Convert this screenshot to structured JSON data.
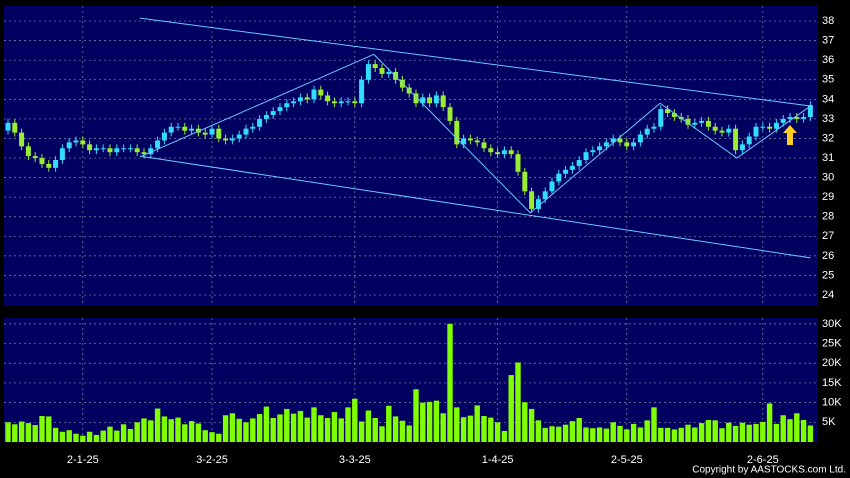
{
  "chart_data": [
    {
      "type": "candlestick",
      "categories": [
        null,
        null,
        null,
        null,
        null,
        null,
        null,
        null,
        null,
        null,
        null,
        "2-1-25",
        null,
        null,
        null,
        null,
        null,
        null,
        null,
        null,
        null,
        null,
        null,
        null,
        null,
        null,
        null,
        null,
        null,
        null,
        "3-2-25",
        null,
        null,
        null,
        null,
        null,
        null,
        null,
        null,
        null,
        null,
        null,
        null,
        null,
        null,
        null,
        null,
        null,
        null,
        null,
        null,
        "3-3-25",
        null,
        null,
        null,
        null,
        null,
        null,
        null,
        null,
        null,
        null,
        null,
        null,
        null,
        null,
        null,
        null,
        null,
        null,
        null,
        null,
        "1-4-25",
        null,
        null,
        null,
        null,
        null,
        null,
        null,
        null,
        null,
        null,
        null,
        null,
        null,
        null,
        null,
        null,
        null,
        null,
        "2-5-25",
        null,
        null,
        null,
        null,
        null,
        null,
        null,
        null,
        null,
        null,
        null,
        null,
        null,
        null,
        null,
        null,
        null,
        null,
        null,
        "2-6-25",
        null,
        null,
        null,
        null,
        null,
        null,
        null
      ],
      "open": [
        32.4,
        32.8,
        32.3,
        31.6,
        31.1,
        31.0,
        30.7,
        30.5,
        30.9,
        31.5,
        31.8,
        31.9,
        31.7,
        31.4,
        31.5,
        31.5,
        31.3,
        31.5,
        31.5,
        31.5,
        31.3,
        31.2,
        31.5,
        31.9,
        32.3,
        32.6,
        32.6,
        32.4,
        32.5,
        32.3,
        32.2,
        32.5,
        32.0,
        31.9,
        32.0,
        32.2,
        32.5,
        32.6,
        33.0,
        33.2,
        33.4,
        33.6,
        33.8,
        33.9,
        34.1,
        34.0,
        34.5,
        34.2,
        33.9,
        33.8,
        33.9,
        33.9,
        33.8,
        35.0,
        35.8,
        35.6,
        35.3,
        35.4,
        35.0,
        34.6,
        34.3,
        33.8,
        34.1,
        33.8,
        34.2,
        33.6,
        32.9,
        31.7,
        32.0,
        31.9,
        31.8,
        31.5,
        31.3,
        31.2,
        31.4,
        31.2,
        30.3,
        29.3,
        28.4,
        28.9,
        29.3,
        29.8,
        30.2,
        30.4,
        30.6,
        30.9,
        31.3,
        31.4,
        31.6,
        31.8,
        32.0,
        31.8,
        31.6,
        31.8,
        32.2,
        32.5,
        32.6,
        33.5,
        33.3,
        33.1,
        33.0,
        32.7,
        32.8,
        32.9,
        32.6,
        32.4,
        32.3,
        32.5,
        31.4,
        31.7,
        32.1,
        32.6,
        32.6,
        32.5,
        32.8,
        33.0,
        33.1,
        33.0,
        33.1
      ],
      "high": [
        33.0,
        33.0,
        32.5,
        31.8,
        31.3,
        31.2,
        30.9,
        31.1,
        31.7,
        32.0,
        32.1,
        32.1,
        31.9,
        31.7,
        31.7,
        31.7,
        31.7,
        31.7,
        31.7,
        31.7,
        31.5,
        31.7,
        32.1,
        32.5,
        32.8,
        32.8,
        32.8,
        32.7,
        32.7,
        32.5,
        32.7,
        32.7,
        32.2,
        32.2,
        32.4,
        32.7,
        32.8,
        33.2,
        33.4,
        33.6,
        33.8,
        34.0,
        34.1,
        34.3,
        34.3,
        34.7,
        34.7,
        34.4,
        34.1,
        34.1,
        34.1,
        34.1,
        35.2,
        36.0,
        36.0,
        35.8,
        35.6,
        35.6,
        35.2,
        34.8,
        34.5,
        34.3,
        34.3,
        34.4,
        34.4,
        33.8,
        33.1,
        32.2,
        32.2,
        32.1,
        32.0,
        31.7,
        31.5,
        31.6,
        31.6,
        31.4,
        30.5,
        29.5,
        29.1,
        29.5,
        30.0,
        30.4,
        30.6,
        30.8,
        31.1,
        31.5,
        31.6,
        31.8,
        32.0,
        32.2,
        32.2,
        32.0,
        32.0,
        32.4,
        32.7,
        32.8,
        33.7,
        33.7,
        33.5,
        33.3,
        33.2,
        33.0,
        33.1,
        33.1,
        32.8,
        32.6,
        32.7,
        32.7,
        31.9,
        32.3,
        32.8,
        32.8,
        32.8,
        33.0,
        33.2,
        33.3,
        33.3,
        33.3,
        33.9
      ],
      "low": [
        32.2,
        32.1,
        31.4,
        30.9,
        30.8,
        30.5,
        30.3,
        30.3,
        30.7,
        31.3,
        31.6,
        31.5,
        31.2,
        31.2,
        31.3,
        31.1,
        31.1,
        31.3,
        31.3,
        31.1,
        31.0,
        31.0,
        31.3,
        31.7,
        32.1,
        32.4,
        32.2,
        32.2,
        32.1,
        32.0,
        32.0,
        31.8,
        31.7,
        31.7,
        31.8,
        32.0,
        32.3,
        32.4,
        32.8,
        33.0,
        33.2,
        33.4,
        33.6,
        33.7,
        33.8,
        33.8,
        34.0,
        33.7,
        33.6,
        33.6,
        33.7,
        33.6,
        33.6,
        34.8,
        35.4,
        35.1,
        35.1,
        34.8,
        34.4,
        34.1,
        33.6,
        33.6,
        33.6,
        33.6,
        33.4,
        32.7,
        31.5,
        31.5,
        31.7,
        31.6,
        31.3,
        31.1,
        31.0,
        31.0,
        31.0,
        30.1,
        29.1,
        28.2,
        28.2,
        28.7,
        29.1,
        29.6,
        30.0,
        30.2,
        30.4,
        30.7,
        31.1,
        31.2,
        31.4,
        31.6,
        31.6,
        31.4,
        31.4,
        31.6,
        32.0,
        32.3,
        32.4,
        33.1,
        32.9,
        32.8,
        32.5,
        32.5,
        32.6,
        32.4,
        32.2,
        32.1,
        32.1,
        31.2,
        31.2,
        31.5,
        31.9,
        32.4,
        32.3,
        32.3,
        32.6,
        32.8,
        32.8,
        32.8,
        32.9
      ],
      "close": [
        32.8,
        32.3,
        31.6,
        31.1,
        31.0,
        30.7,
        30.5,
        30.9,
        31.5,
        31.8,
        31.9,
        31.7,
        31.4,
        31.5,
        31.5,
        31.3,
        31.5,
        31.5,
        31.5,
        31.3,
        31.2,
        31.5,
        31.9,
        32.3,
        32.6,
        32.6,
        32.4,
        32.5,
        32.3,
        32.2,
        32.5,
        32.0,
        31.9,
        32.0,
        32.2,
        32.5,
        32.6,
        33.0,
        33.2,
        33.4,
        33.6,
        33.8,
        33.9,
        34.1,
        34.0,
        34.5,
        34.2,
        33.9,
        33.8,
        33.9,
        33.9,
        33.8,
        35.0,
        35.8,
        35.6,
        35.3,
        35.4,
        35.0,
        34.6,
        34.3,
        33.8,
        34.1,
        33.8,
        34.2,
        33.6,
        32.9,
        31.7,
        32.0,
        31.9,
        31.8,
        31.5,
        31.3,
        31.2,
        31.4,
        31.2,
        30.3,
        29.3,
        28.4,
        28.9,
        29.3,
        29.8,
        30.2,
        30.4,
        30.6,
        30.9,
        31.3,
        31.4,
        31.6,
        31.8,
        32.0,
        31.8,
        31.6,
        31.8,
        32.2,
        32.5,
        32.6,
        33.5,
        33.3,
        33.1,
        33.0,
        32.7,
        32.8,
        32.9,
        32.6,
        32.4,
        32.3,
        32.5,
        31.4,
        31.7,
        32.1,
        32.6,
        32.6,
        32.5,
        32.8,
        33.0,
        33.1,
        33.0,
        33.1,
        33.7
      ],
      "up_color": "#33ddff",
      "down_color": "#99ee33",
      "ylim": [
        23.44,
        38.77
      ],
      "yticks": [
        24,
        25,
        26,
        27,
        28,
        29,
        30,
        31,
        32,
        33,
        34,
        35,
        36,
        37,
        38
      ],
      "grid": true,
      "trend_lines": [
        {
          "color": "#6ec8ff",
          "x": [
            19.4,
            118
          ],
          "y": [
            38.15,
            33.66
          ]
        },
        {
          "color": "#6ec8ff",
          "x": [
            19.4,
            118
          ],
          "y": [
            31.1,
            25.9
          ]
        },
        {
          "color": "#6ec8ff",
          "x": [
            19.7,
            53.8,
            76.8,
            95.9,
            107.2,
            118.2
          ],
          "y": [
            31.1,
            36.3,
            28.2,
            33.8,
            31.0,
            33.7
          ]
        }
      ]
    },
    {
      "type": "bar",
      "values": [
        5000,
        4500,
        5200,
        4800,
        4300,
        6600,
        6500,
        3600,
        2600,
        3000,
        2100,
        1600,
        2600,
        1800,
        2900,
        3900,
        2900,
        4500,
        3300,
        5000,
        6000,
        5500,
        8500,
        6500,
        5800,
        6200,
        4500,
        5300,
        4700,
        3000,
        2500,
        2100,
        6800,
        7300,
        5900,
        5000,
        6000,
        7100,
        9000,
        6100,
        7000,
        8400,
        7200,
        7900,
        6200,
        8800,
        6800,
        6100,
        7600,
        6000,
        8800,
        11000,
        5200,
        8000,
        6100,
        4000,
        9200,
        6500,
        5400,
        4200,
        13400,
        10000,
        10200,
        10500,
        7300,
        30000,
        8800,
        6300,
        6700,
        9300,
        6600,
        6200,
        5000,
        2800,
        17000,
        20200,
        10100,
        8400,
        5500,
        3600,
        4000,
        3900,
        4400,
        5300,
        6100,
        3700,
        3500,
        3700,
        3400,
        5000,
        4100,
        3200,
        4600,
        3700,
        5500,
        8800,
        3600,
        3600,
        3200,
        3600,
        4400,
        3700,
        4800,
        5600,
        5500,
        3500,
        4900,
        4100,
        4900,
        4400,
        4600,
        5100,
        9800,
        4600,
        6800,
        5800,
        7300,
        5600,
        4200
      ],
      "color": "#80ff00",
      "ylim": [
        0,
        31500
      ],
      "yticks": [
        {
          "value": 5000,
          "label": "5K"
        },
        {
          "value": 10000,
          "label": "10K"
        },
        {
          "value": 15000,
          "label": "15K"
        },
        {
          "value": 20000,
          "label": "20K"
        },
        {
          "value": 25000,
          "label": "25K"
        },
        {
          "value": 30000,
          "label": "30K"
        }
      ],
      "grid": true
    }
  ],
  "copyright": "Copyright by AASTOCKS.com Ltd."
}
